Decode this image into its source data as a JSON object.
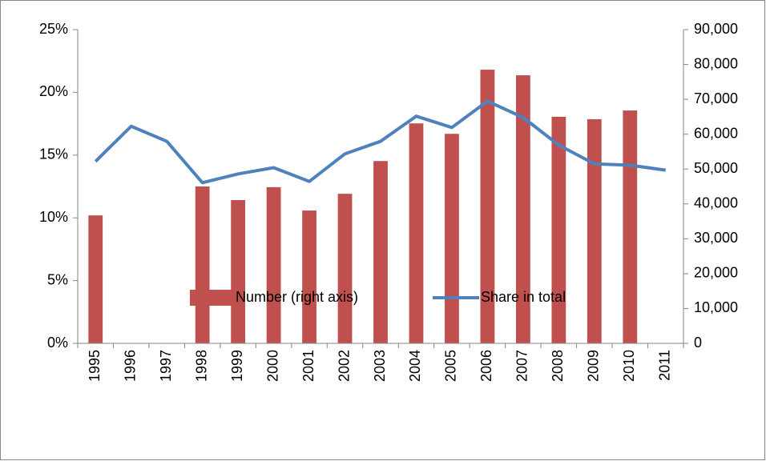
{
  "chart_data": {
    "type": "bar_line",
    "categories": [
      "1995",
      "1996",
      "1997",
      "1998",
      "1999",
      "2000",
      "2001",
      "2002",
      "2003",
      "2004",
      "2005",
      "2006",
      "2007",
      "2008",
      "2009",
      "2010",
      "2011"
    ],
    "series": [
      {
        "name": "Number (right axis)",
        "type": "bar",
        "axis": "y2",
        "color": "#c0504d",
        "values": [
          36700,
          null,
          null,
          45000,
          41100,
          44800,
          38100,
          42900,
          52300,
          63100,
          60100,
          78500,
          76900,
          65000,
          64300,
          66800,
          null
        ]
      },
      {
        "name": "Share in total",
        "type": "line",
        "color": "#4f81bd",
        "values": [
          14.5,
          17.3,
          16.1,
          12.8,
          13.5,
          14.0,
          12.9,
          15.1,
          16.1,
          18.1,
          17.2,
          19.3,
          18.0,
          15.8,
          14.3,
          14.2,
          13.8
        ]
      }
    ],
    "ylim": [
      0,
      25
    ],
    "yticks": [
      {
        "value": 0,
        "label": "0%"
      },
      {
        "value": 5,
        "label": "5%"
      },
      {
        "value": 10,
        "label": "10%"
      },
      {
        "value": 15,
        "label": "15%"
      },
      {
        "value": 20,
        "label": "20%"
      },
      {
        "value": 25,
        "label": "25%"
      }
    ],
    "y2lim": [
      0,
      90000
    ],
    "y2ticks": [
      0,
      {
        "value": 10000,
        "label": "10,000"
      },
      {
        "value": 20000,
        "label": "20,000"
      },
      {
        "value": 30000,
        "label": "30,000"
      },
      {
        "value": 40000,
        "label": "40,000"
      },
      {
        "value": 50000,
        "label": "50,000"
      },
      {
        "value": 60000,
        "label": "60,000"
      },
      {
        "value": 70000,
        "label": "70,000"
      },
      {
        "value": 80000,
        "label": "80,000"
      },
      {
        "value": 90000,
        "label": "90,000"
      }
    ],
    "grid": false,
    "legend": "bottom"
  }
}
